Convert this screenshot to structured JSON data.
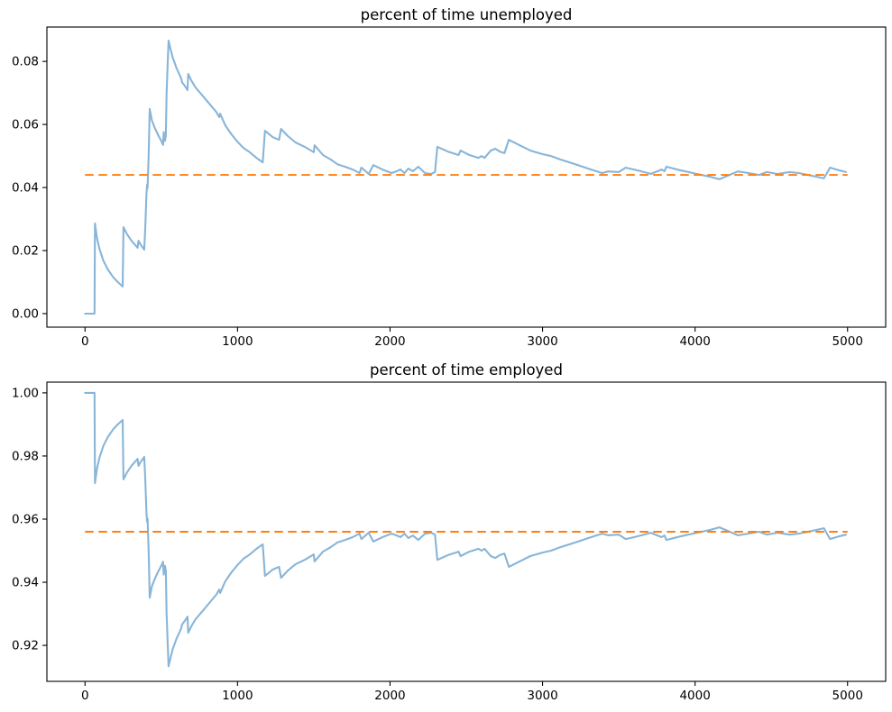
{
  "figure": {
    "background": "#ffffff"
  },
  "chart_data": [
    {
      "id": "unemployed",
      "type": "line",
      "title": "percent of time unemployed",
      "xlabel": "",
      "ylabel": "",
      "xlim": [
        -250,
        5250
      ],
      "ylim": [
        -0.0043,
        0.0909
      ],
      "xticks": [
        0,
        1000,
        2000,
        3000,
        4000,
        5000
      ],
      "xtick_labels": [
        "0",
        "1000",
        "2000",
        "3000",
        "4000",
        "5000"
      ],
      "yticks": [
        0.0,
        0.02,
        0.04,
        0.06,
        0.08
      ],
      "ytick_labels": [
        "0.00",
        "0.02",
        "0.04",
        "0.06",
        "0.08"
      ],
      "grid": false,
      "legend": false,
      "series": [
        {
          "id": "unemployed-running-average",
          "type": "line",
          "color": "#88b5d8",
          "linewidth": 2.1,
          "x": [
            0,
            62,
            65,
            78,
            95,
            120,
            150,
            185,
            215,
            247,
            252,
            275,
            305,
            345,
            350,
            370,
            388,
            394,
            403,
            407,
            410,
            417,
            424,
            438,
            455,
            480,
            500,
            512,
            516,
            524,
            530,
            535,
            548,
            560,
            575,
            600,
            625,
            632,
            636,
            655,
            672,
            677,
            700,
            725,
            750,
            790,
            830,
            860,
            880,
            886,
            920,
            955,
            975,
            1000,
            1040,
            1080,
            1130,
            1165,
            1180,
            1230,
            1272,
            1285,
            1330,
            1380,
            1440,
            1500,
            1505,
            1560,
            1610,
            1655,
            1705,
            1755,
            1800,
            1812,
            1860,
            1890,
            1950,
            2010,
            2040,
            2069,
            2095,
            2120,
            2150,
            2185,
            2230,
            2270,
            2295,
            2310,
            2380,
            2450,
            2462,
            2520,
            2560,
            2580,
            2600,
            2620,
            2660,
            2690,
            2720,
            2750,
            2779,
            2850,
            2920,
            3000,
            3056,
            3115,
            3215,
            3300,
            3390,
            3430,
            3500,
            3545,
            3610,
            3690,
            3710,
            3780,
            3800,
            3812,
            3900,
            4013,
            4100,
            4160,
            4280,
            4350,
            4420,
            4470,
            4540,
            4620,
            4680,
            4760,
            4845,
            4885,
            4940,
            4990
          ],
          "y": [
            0.0,
            0.0,
            0.0286,
            0.024,
            0.0205,
            0.0168,
            0.014,
            0.0115,
            0.01,
            0.0086,
            0.0274,
            0.0252,
            0.0231,
            0.0209,
            0.0231,
            0.0215,
            0.0203,
            0.026,
            0.038,
            0.0409,
            0.0398,
            0.05,
            0.0649,
            0.0614,
            0.0592,
            0.0566,
            0.0548,
            0.0535,
            0.0576,
            0.0548,
            0.0565,
            0.07,
            0.0866,
            0.084,
            0.0812,
            0.0779,
            0.0752,
            0.0744,
            0.0734,
            0.0722,
            0.0709,
            0.076,
            0.0737,
            0.0717,
            0.0703,
            0.068,
            0.0657,
            0.064,
            0.0623,
            0.0634,
            0.0597,
            0.0572,
            0.056,
            0.0545,
            0.0525,
            0.0512,
            0.0492,
            0.048,
            0.058,
            0.056,
            0.0551,
            0.0586,
            0.0563,
            0.0543,
            0.0529,
            0.0512,
            0.0534,
            0.0503,
            0.0489,
            0.0474,
            0.0466,
            0.0457,
            0.0446,
            0.0463,
            0.0443,
            0.0471,
            0.0457,
            0.0446,
            0.0451,
            0.0457,
            0.0446,
            0.046,
            0.0452,
            0.0466,
            0.0446,
            0.0443,
            0.0449,
            0.0529,
            0.0514,
            0.0503,
            0.0517,
            0.0503,
            0.0497,
            0.0494,
            0.05,
            0.0494,
            0.0517,
            0.0523,
            0.0514,
            0.0509,
            0.0551,
            0.0534,
            0.0517,
            0.0506,
            0.05,
            0.0489,
            0.0474,
            0.046,
            0.0446,
            0.0451,
            0.0449,
            0.0463,
            0.0456,
            0.0446,
            0.0443,
            0.0457,
            0.0452,
            0.0466,
            0.0455,
            0.0443,
            0.0434,
            0.0426,
            0.0451,
            0.0446,
            0.044,
            0.0449,
            0.0443,
            0.0449,
            0.0446,
            0.0438,
            0.0429,
            0.0463,
            0.0455,
            0.0449
          ]
        },
        {
          "id": "unemployed-steady-state",
          "type": "hline",
          "color": "#ff7f0e",
          "style": "dashed",
          "linewidth": 1.9,
          "y": 0.044,
          "x_start": 0,
          "x_end": 5000
        }
      ]
    },
    {
      "id": "employed",
      "type": "line",
      "title": "percent of time employed",
      "xlabel": "",
      "ylabel": "",
      "xlim": [
        -250,
        5250
      ],
      "ylim": [
        0.9086,
        1.0034
      ],
      "xticks": [
        0,
        1000,
        2000,
        3000,
        4000,
        5000
      ],
      "xtick_labels": [
        "0",
        "1000",
        "2000",
        "3000",
        "4000",
        "5000"
      ],
      "yticks": [
        0.92,
        0.94,
        0.96,
        0.98,
        1.0
      ],
      "ytick_labels": [
        "0.92",
        "0.94",
        "0.96",
        "0.98",
        "1.00"
      ],
      "grid": false,
      "legend": false,
      "series": [
        {
          "id": "employed-running-average",
          "type": "line",
          "color": "#88b5d8",
          "linewidth": 2.1,
          "x": [
            0,
            62,
            65,
            78,
            95,
            120,
            150,
            185,
            215,
            247,
            252,
            275,
            305,
            345,
            350,
            370,
            388,
            394,
            403,
            407,
            410,
            417,
            424,
            438,
            455,
            480,
            500,
            512,
            516,
            524,
            530,
            535,
            548,
            560,
            575,
            600,
            625,
            632,
            636,
            655,
            672,
            677,
            700,
            725,
            750,
            790,
            830,
            860,
            880,
            886,
            920,
            955,
            975,
            1000,
            1040,
            1080,
            1130,
            1165,
            1180,
            1230,
            1272,
            1285,
            1330,
            1380,
            1440,
            1500,
            1505,
            1560,
            1610,
            1655,
            1705,
            1755,
            1800,
            1812,
            1860,
            1890,
            1950,
            2010,
            2040,
            2069,
            2095,
            2120,
            2150,
            2185,
            2230,
            2270,
            2295,
            2310,
            2380,
            2450,
            2462,
            2520,
            2560,
            2580,
            2600,
            2620,
            2660,
            2690,
            2720,
            2750,
            2779,
            2850,
            2920,
            3000,
            3056,
            3115,
            3215,
            3300,
            3390,
            3430,
            3500,
            3545,
            3610,
            3690,
            3710,
            3780,
            3800,
            3812,
            3900,
            4013,
            4100,
            4160,
            4280,
            4350,
            4420,
            4470,
            4540,
            4620,
            4680,
            4760,
            4845,
            4885,
            4940,
            4990
          ],
          "y": [
            1.0,
            1.0,
            0.9714,
            0.976,
            0.9795,
            0.9832,
            0.986,
            0.9885,
            0.99,
            0.9914,
            0.9726,
            0.9748,
            0.9769,
            0.9791,
            0.9769,
            0.9785,
            0.9797,
            0.974,
            0.962,
            0.9591,
            0.9602,
            0.95,
            0.9351,
            0.9386,
            0.9408,
            0.9434,
            0.9452,
            0.9465,
            0.9424,
            0.9452,
            0.9435,
            0.93,
            0.9134,
            0.916,
            0.9188,
            0.9221,
            0.9248,
            0.9256,
            0.9266,
            0.9278,
            0.9291,
            0.924,
            0.9263,
            0.9283,
            0.9297,
            0.932,
            0.9343,
            0.936,
            0.9377,
            0.9366,
            0.9403,
            0.9428,
            0.944,
            0.9455,
            0.9475,
            0.9488,
            0.9508,
            0.952,
            0.942,
            0.944,
            0.9449,
            0.9414,
            0.9437,
            0.9457,
            0.9471,
            0.9488,
            0.9466,
            0.9497,
            0.9511,
            0.9526,
            0.9534,
            0.9543,
            0.9554,
            0.9537,
            0.9557,
            0.9529,
            0.9543,
            0.9554,
            0.9549,
            0.9543,
            0.9554,
            0.954,
            0.9548,
            0.9534,
            0.9554,
            0.9557,
            0.9551,
            0.9471,
            0.9486,
            0.9497,
            0.9483,
            0.9497,
            0.9503,
            0.9506,
            0.95,
            0.9506,
            0.9483,
            0.9477,
            0.9486,
            0.9491,
            0.9449,
            0.9466,
            0.9483,
            0.9494,
            0.95,
            0.9511,
            0.9526,
            0.954,
            0.9554,
            0.9549,
            0.9551,
            0.9537,
            0.9544,
            0.9554,
            0.9557,
            0.9543,
            0.9548,
            0.9534,
            0.9545,
            0.9557,
            0.9566,
            0.9574,
            0.9549,
            0.9554,
            0.956,
            0.9551,
            0.9557,
            0.9551,
            0.9554,
            0.9562,
            0.9571,
            0.9537,
            0.9545,
            0.9551
          ]
        },
        {
          "id": "employed-steady-state",
          "type": "hline",
          "color": "#ff7f0e",
          "style": "dashed",
          "linewidth": 1.9,
          "y": 0.956,
          "x_start": 0,
          "x_end": 5000
        }
      ]
    }
  ]
}
